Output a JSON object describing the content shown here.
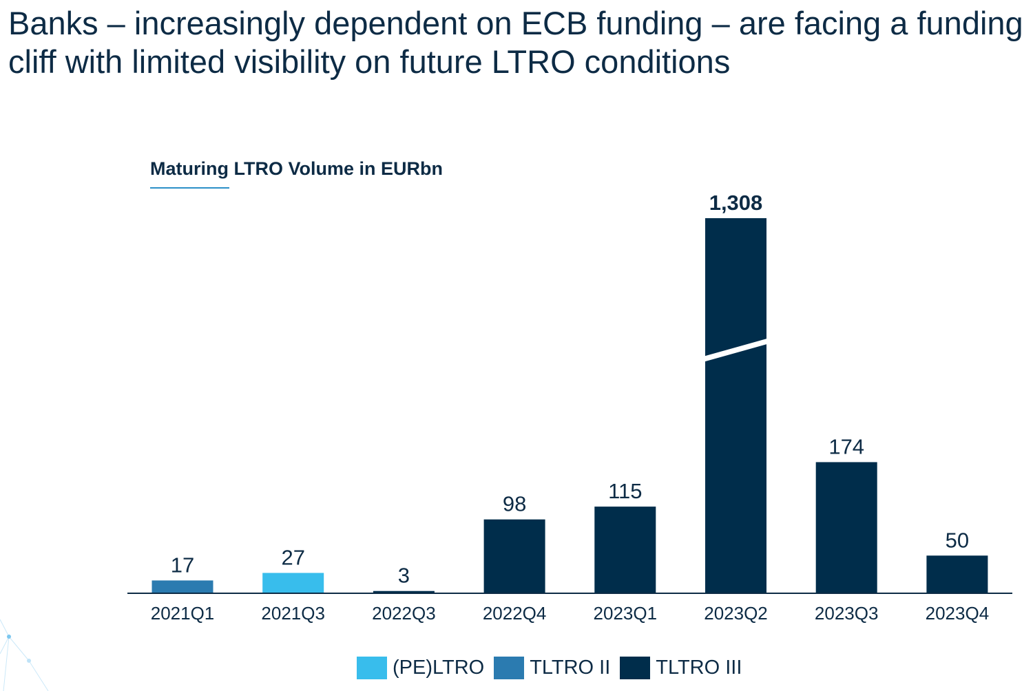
{
  "title": "Banks – increasingly dependent on ECB funding – are facing a funding cliff with limited visibility on future LTRO conditions",
  "chart_data": {
    "type": "bar",
    "title": "Maturing LTRO Volume in EURbn",
    "categories": [
      "2021Q1",
      "2021Q3",
      "2022Q3",
      "2022Q4",
      "2023Q1",
      "2023Q2",
      "2023Q3",
      "2023Q4"
    ],
    "values": [
      17,
      27,
      3,
      98,
      115,
      1308,
      174,
      50
    ],
    "value_labels": [
      "17",
      "27",
      "3",
      "98",
      "115",
      "1,308",
      "174",
      "50"
    ],
    "series_of_bar": [
      "TLTRO II",
      "(PE)LTRO",
      "TLTRO III",
      "TLTRO III",
      "TLTRO III",
      "TLTRO III",
      "TLTRO III",
      "TLTRO III"
    ],
    "broken_bars": [
      "2023Q2"
    ],
    "legend": [
      {
        "name": "(PE)LTRO",
        "color": "#38bdec"
      },
      {
        "name": "TLTRO II",
        "color": "#2b7bb0"
      },
      {
        "name": "TLTRO III",
        "color": "#002d4b"
      }
    ],
    "legend_position": "bottom",
    "grid": false
  }
}
